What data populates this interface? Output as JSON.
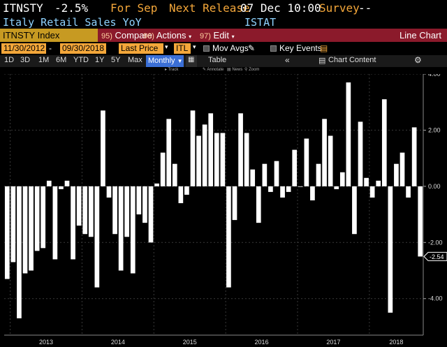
{
  "header": {
    "ticker": "ITNSTY",
    "value": "-2.5%",
    "for_label": "For Sep",
    "next_release_label": "Next Release",
    "next_release_value": "07 Dec 10:00",
    "survey_label": "Survey",
    "survey_value": "--",
    "description": "Italy Retail Sales YoY",
    "source": "ISTAT"
  },
  "toolbar": {
    "security": "ITNSTY Index",
    "compare_num": "95)",
    "compare": "Compare",
    "actions_num": "96)",
    "actions": "Actions",
    "edit_num": "97)",
    "edit": "Edit",
    "chart_label": "Line Chart"
  },
  "range": {
    "start": "11/30/2012",
    "end": "09/30/2018",
    "field": "Last Price",
    "currency": "ITL",
    "mov_avgs": "Mov Avgs",
    "key_events": "Key Events"
  },
  "periods": {
    "items": [
      "1D",
      "3D",
      "1M",
      "6M",
      "YTD",
      "1Y",
      "5Y",
      "Max"
    ],
    "frequency": "Monthly",
    "table": "Table",
    "chart_content": "Chart Content"
  },
  "tools": {
    "track": "Track",
    "annotate": "Annotate",
    "news": "News",
    "zoom": "Zoom"
  },
  "colors": {
    "accent_orange": "#f4a73a",
    "toolbar_red": "#8b1a2b",
    "bars": "#ffffff",
    "background": "#000000"
  },
  "chart_data": {
    "type": "bar",
    "title": "",
    "xlabel": "",
    "ylabel": "",
    "ylim": [
      -5.3,
      4.0
    ],
    "yticks": [
      -4.0,
      -2.0,
      0.0,
      2.0,
      4.0
    ],
    "ytick_labels": [
      "-4.00",
      "-2.00",
      "0.00",
      "2.00",
      "4.00"
    ],
    "year_labels": [
      "2013",
      "2014",
      "2015",
      "2016",
      "2017",
      "2018"
    ],
    "last_value_label": "-2.54",
    "grid": true,
    "x": [
      "2012-12",
      "2013-01",
      "2013-02",
      "2013-03",
      "2013-04",
      "2013-05",
      "2013-06",
      "2013-07",
      "2013-08",
      "2013-09",
      "2013-10",
      "2013-11",
      "2013-12",
      "2014-01",
      "2014-02",
      "2014-03",
      "2014-04",
      "2014-05",
      "2014-06",
      "2014-07",
      "2014-08",
      "2014-09",
      "2014-10",
      "2014-11",
      "2014-12",
      "2015-01",
      "2015-02",
      "2015-03",
      "2015-04",
      "2015-05",
      "2015-06",
      "2015-07",
      "2015-08",
      "2015-09",
      "2015-10",
      "2015-11",
      "2015-12",
      "2016-01",
      "2016-02",
      "2016-03",
      "2016-04",
      "2016-05",
      "2016-06",
      "2016-07",
      "2016-08",
      "2016-09",
      "2016-10",
      "2016-11",
      "2016-12",
      "2017-01",
      "2017-02",
      "2017-03",
      "2017-04",
      "2017-05",
      "2017-06",
      "2017-07",
      "2017-08",
      "2017-09",
      "2017-10",
      "2017-11",
      "2017-12",
      "2018-01",
      "2018-02",
      "2018-03",
      "2018-04",
      "2018-05",
      "2018-06",
      "2018-07",
      "2018-08",
      "2018-09"
    ],
    "values": [
      -3.3,
      -2.7,
      -4.7,
      -3.1,
      -3.0,
      -2.3,
      -2.2,
      0.2,
      -2.6,
      -0.1,
      0.2,
      -2.6,
      -1.4,
      -1.7,
      -1.8,
      -3.6,
      2.7,
      -0.4,
      -1.7,
      -3.0,
      -1.8,
      -3.1,
      -1.0,
      -1.3,
      -2.0,
      0.1,
      1.2,
      2.4,
      0.8,
      -0.6,
      -0.3,
      2.7,
      1.8,
      2.2,
      2.6,
      1.9,
      1.9,
      -3.6,
      -1.2,
      2.6,
      1.9,
      0.6,
      -1.3,
      0.8,
      -0.2,
      0.9,
      -0.4,
      -0.2,
      1.3,
      0.0,
      1.7,
      -0.5,
      0.8,
      2.4,
      1.8,
      -0.1,
      0.5,
      3.7,
      -1.7,
      2.3,
      0.3,
      -0.4,
      0.2,
      3.1,
      -4.5,
      0.8,
      1.2,
      -0.4,
      2.1,
      -2.5
    ]
  }
}
